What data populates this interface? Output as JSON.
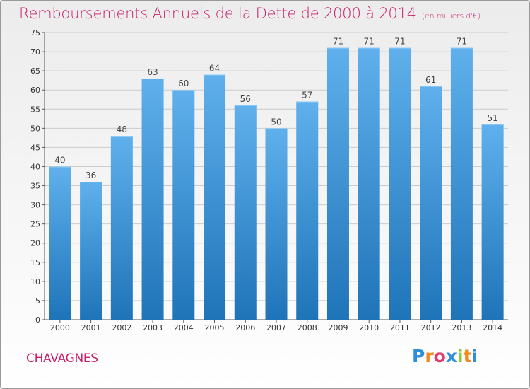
{
  "title": "Remboursements Annuels de la Dette de 2000 à 2014",
  "subtitle": "(en milliers d'€)",
  "commune": "CHAVAGNES",
  "logo": {
    "letters": [
      "P",
      "r",
      "o",
      "x",
      "i",
      "t",
      "i"
    ],
    "colors": [
      "#2d8fd8",
      "#f08a1c",
      "#e23a6b",
      "#2d8fd8",
      "#8cc63f",
      "#f08a1c",
      "#2d8fd8"
    ]
  },
  "colors": {
    "title": "#c8216b",
    "bar_top": "#5fb0ec",
    "bar_bottom": "#1f74b8",
    "grid": "#cccccc"
  },
  "chart_data": {
    "type": "bar",
    "categories": [
      "2000",
      "2001",
      "2002",
      "2003",
      "2004",
      "2005",
      "2006",
      "2007",
      "2008",
      "2009",
      "2010",
      "2011",
      "2012",
      "2013",
      "2014"
    ],
    "values": [
      40,
      36,
      48,
      63,
      60,
      64,
      56,
      50,
      57,
      71,
      71,
      71,
      61,
      71,
      51
    ],
    "ylim": [
      0,
      75
    ],
    "yticks": [
      0,
      5,
      10,
      15,
      20,
      25,
      30,
      35,
      40,
      45,
      50,
      55,
      60,
      65,
      70,
      75
    ],
    "grid": true,
    "title": "Remboursements Annuels de la Dette de 2000 à 2014",
    "xlabel": "",
    "ylabel": ""
  }
}
